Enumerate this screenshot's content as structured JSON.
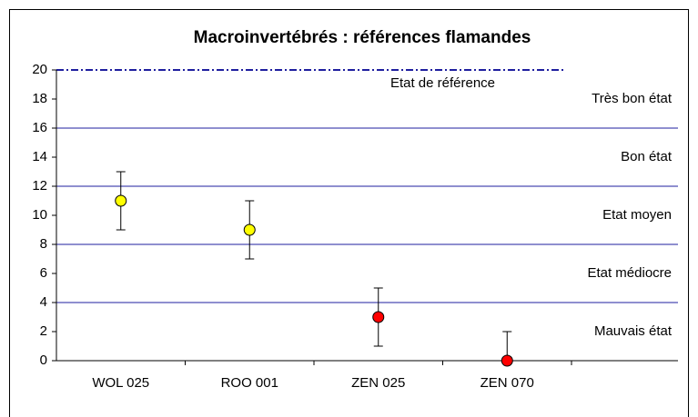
{
  "chart_data": {
    "type": "errorbar",
    "title": "Macroinvertébrés : références flamandes",
    "categories": [
      "WOL 025",
      "ROO 001",
      "ZEN 025",
      "ZEN 070"
    ],
    "values": [
      11,
      9,
      3,
      0
    ],
    "errors": [
      2,
      2,
      2,
      2
    ],
    "colors": [
      "#ffff00",
      "#ffff00",
      "#ff0000",
      "#ff0000"
    ],
    "ylim": [
      0,
      20
    ],
    "yticks": [
      0,
      2,
      4,
      6,
      8,
      10,
      12,
      14,
      16,
      18,
      20
    ],
    "zones": [
      {
        "label": "Mauvais état",
        "from": 0,
        "to": 4
      },
      {
        "label": "Etat médiocre",
        "from": 4,
        "to": 8
      },
      {
        "label": "Etat moyen",
        "from": 8,
        "to": 12
      },
      {
        "label": "Bon état",
        "from": 12,
        "to": 16
      },
      {
        "label": "Très bon état",
        "from": 16,
        "to": 20
      }
    ],
    "reference": {
      "label": "Etat de référence",
      "value": 20
    },
    "zone_line_color": "#1f1f9f"
  }
}
